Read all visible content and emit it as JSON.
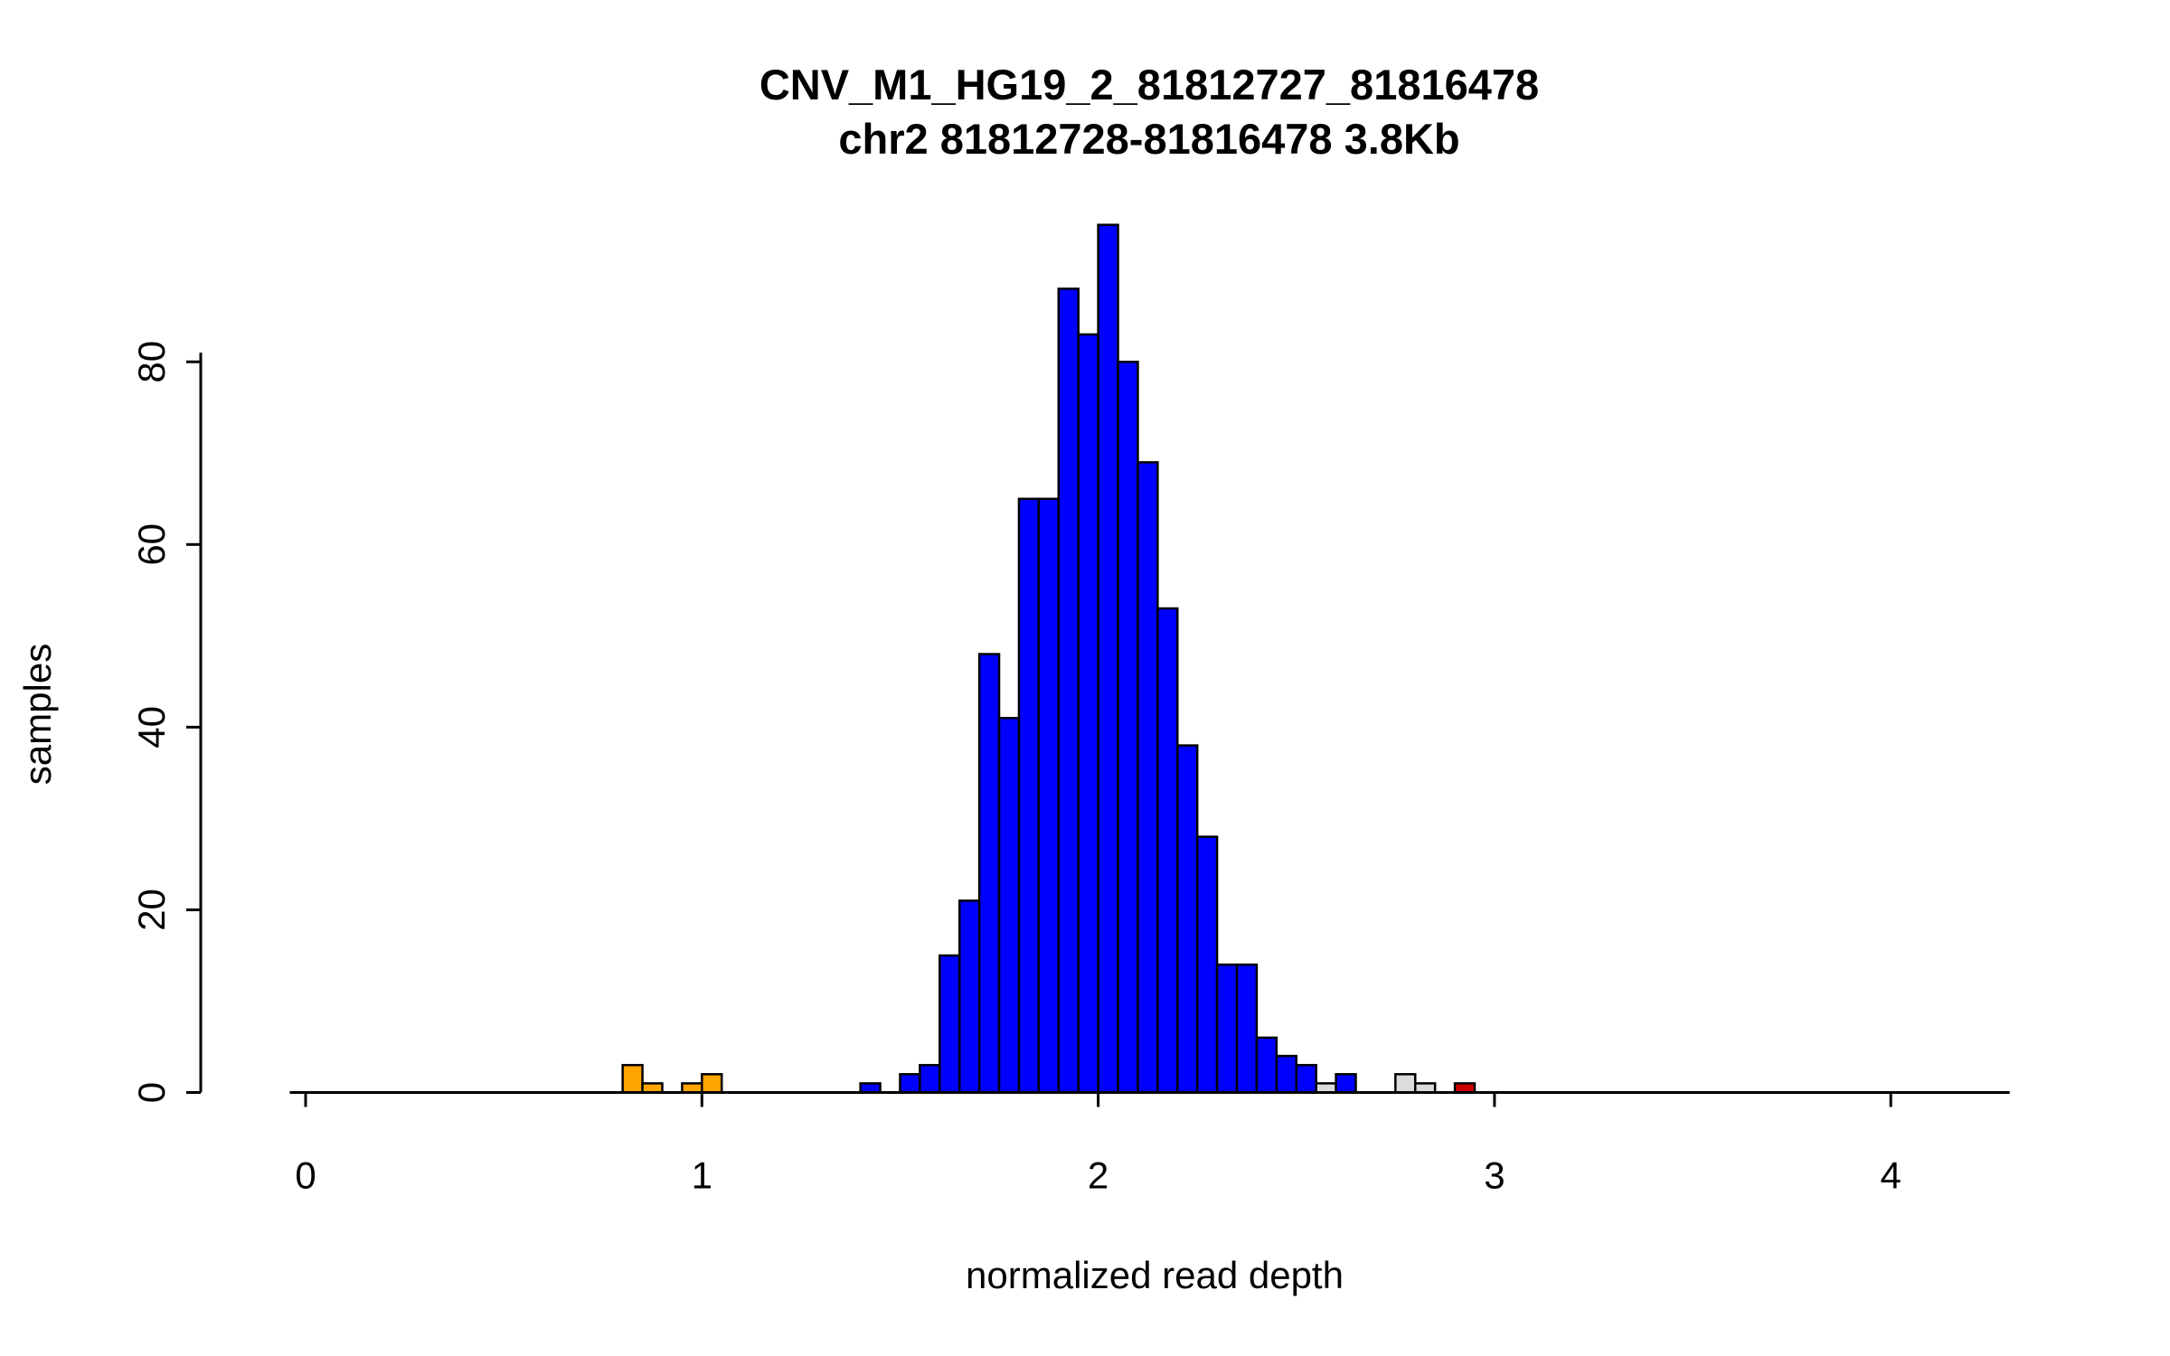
{
  "title": {
    "line1": "CNV_M1_HG19_2_81812727_81816478",
    "line2": "chr2 81812728-81816478 3.8Kb"
  },
  "chart_data": {
    "type": "bar",
    "title": "CNV_M1_HG19_2_81812727_81816478",
    "subtitle": "chr2 81812728-81816478 3.8Kb",
    "xlabel": "normalized read depth",
    "ylabel": "samples",
    "x_ticks": [
      0,
      1,
      2,
      3,
      4
    ],
    "y_ticks": [
      0,
      20,
      40,
      60,
      80
    ],
    "xlim": [
      -0.04,
      4.3
    ],
    "ylim": [
      0,
      95
    ],
    "bin_width": 0.05,
    "legend_position": "none",
    "grid": false,
    "bars": [
      {
        "x": 0.8,
        "count": 3,
        "color": "#FFA500"
      },
      {
        "x": 0.85,
        "count": 1,
        "color": "#FFA500"
      },
      {
        "x": 0.95,
        "count": 1,
        "color": "#FFA500"
      },
      {
        "x": 1.0,
        "count": 2,
        "color": "#FFA500"
      },
      {
        "x": 1.4,
        "count": 1,
        "color": "#0000FF"
      },
      {
        "x": 1.5,
        "count": 2,
        "color": "#0000FF"
      },
      {
        "x": 1.55,
        "count": 3,
        "color": "#0000FF"
      },
      {
        "x": 1.6,
        "count": 15,
        "color": "#0000FF"
      },
      {
        "x": 1.65,
        "count": 21,
        "color": "#0000FF"
      },
      {
        "x": 1.7,
        "count": 48,
        "color": "#0000FF"
      },
      {
        "x": 1.75,
        "count": 41,
        "color": "#0000FF"
      },
      {
        "x": 1.8,
        "count": 65,
        "color": "#0000FF"
      },
      {
        "x": 1.85,
        "count": 65,
        "color": "#0000FF"
      },
      {
        "x": 1.9,
        "count": 88,
        "color": "#0000FF"
      },
      {
        "x": 1.95,
        "count": 83,
        "color": "#0000FF"
      },
      {
        "x": 2.0,
        "count": 95,
        "color": "#0000FF"
      },
      {
        "x": 2.05,
        "count": 80,
        "color": "#0000FF"
      },
      {
        "x": 2.1,
        "count": 69,
        "color": "#0000FF"
      },
      {
        "x": 2.15,
        "count": 53,
        "color": "#0000FF"
      },
      {
        "x": 2.2,
        "count": 38,
        "color": "#0000FF"
      },
      {
        "x": 2.25,
        "count": 28,
        "color": "#0000FF"
      },
      {
        "x": 2.3,
        "count": 14,
        "color": "#0000FF"
      },
      {
        "x": 2.35,
        "count": 14,
        "color": "#0000FF"
      },
      {
        "x": 2.4,
        "count": 6,
        "color": "#0000FF"
      },
      {
        "x": 2.45,
        "count": 4,
        "color": "#0000FF"
      },
      {
        "x": 2.5,
        "count": 3,
        "color": "#0000FF"
      },
      {
        "x": 2.55,
        "count": 1,
        "color": "#DCDCDC"
      },
      {
        "x": 2.6,
        "count": 2,
        "color": "#0000FF"
      },
      {
        "x": 2.75,
        "count": 2,
        "color": "#DCDCDC"
      },
      {
        "x": 2.8,
        "count": 1,
        "color": "#DCDCDC"
      },
      {
        "x": 2.9,
        "count": 1,
        "color": "#CC0000"
      }
    ]
  }
}
